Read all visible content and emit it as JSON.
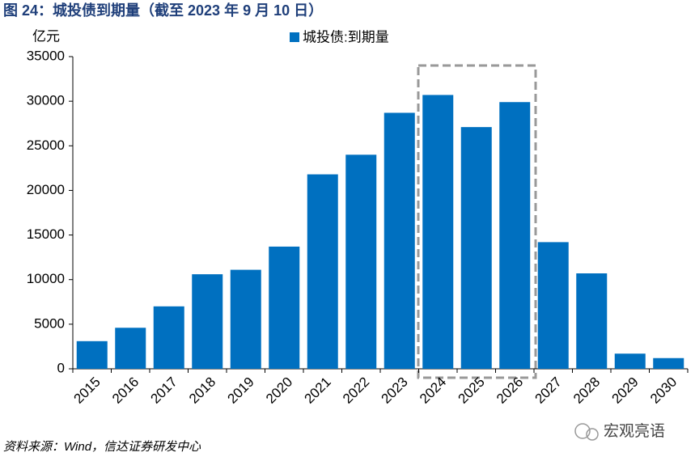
{
  "chart_data": {
    "type": "bar",
    "title": "图 24：城投债到期量（截至 2023 年 9 月 10 日）",
    "y_unit": "亿元",
    "categories": [
      "2015",
      "2016",
      "2017",
      "2018",
      "2019",
      "2020",
      "2021",
      "2022",
      "2023",
      "2024",
      "2025",
      "2026",
      "2027",
      "2028",
      "2029",
      "2030"
    ],
    "series": [
      {
        "name": "城投债:到期量",
        "color": "#0070c0",
        "values": [
          3100,
          4600,
          7000,
          10600,
          11100,
          13700,
          21800,
          24000,
          28700,
          30700,
          27100,
          29900,
          14200,
          10700,
          1700,
          1200
        ]
      }
    ],
    "ylim": [
      0,
      35000
    ],
    "yticks": [
      0,
      5000,
      10000,
      15000,
      20000,
      25000,
      30000,
      35000
    ],
    "legend": "top",
    "source": "资料来源：Wind，信达证券研发中心",
    "watermark": "宏观亮语"
  }
}
